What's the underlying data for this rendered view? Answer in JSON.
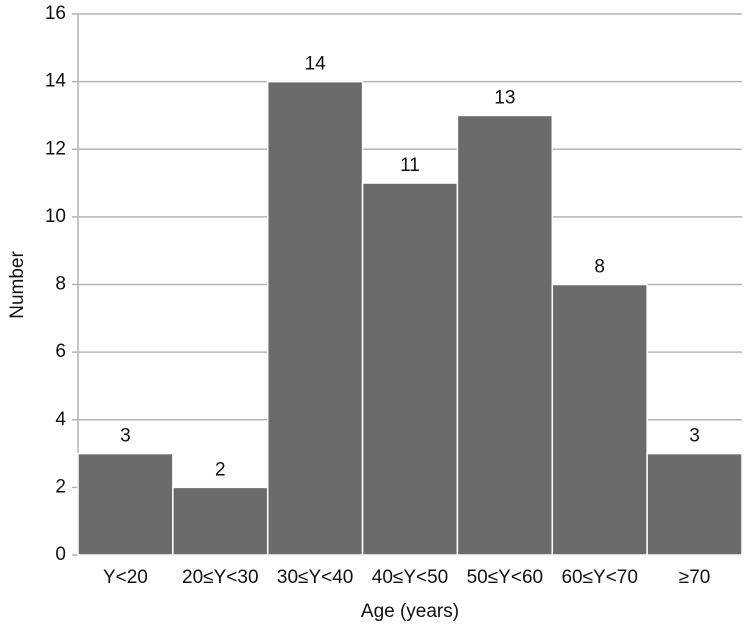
{
  "chart_data": {
    "type": "bar",
    "x_label": "Age (years)",
    "y_label": "Number",
    "categories": [
      "Y<20",
      "20≤Y<30",
      "30≤Y<40",
      "40≤Y<50",
      "50≤Y<60",
      "60≤Y<70",
      "≥70"
    ],
    "values": [
      3,
      2,
      14,
      11,
      13,
      8,
      3
    ],
    "color": "#6b6b6b",
    "ylim": [
      0,
      16
    ],
    "yticks": [
      0,
      2,
      4,
      6,
      8,
      10,
      12,
      14,
      16
    ],
    "grid": true
  }
}
